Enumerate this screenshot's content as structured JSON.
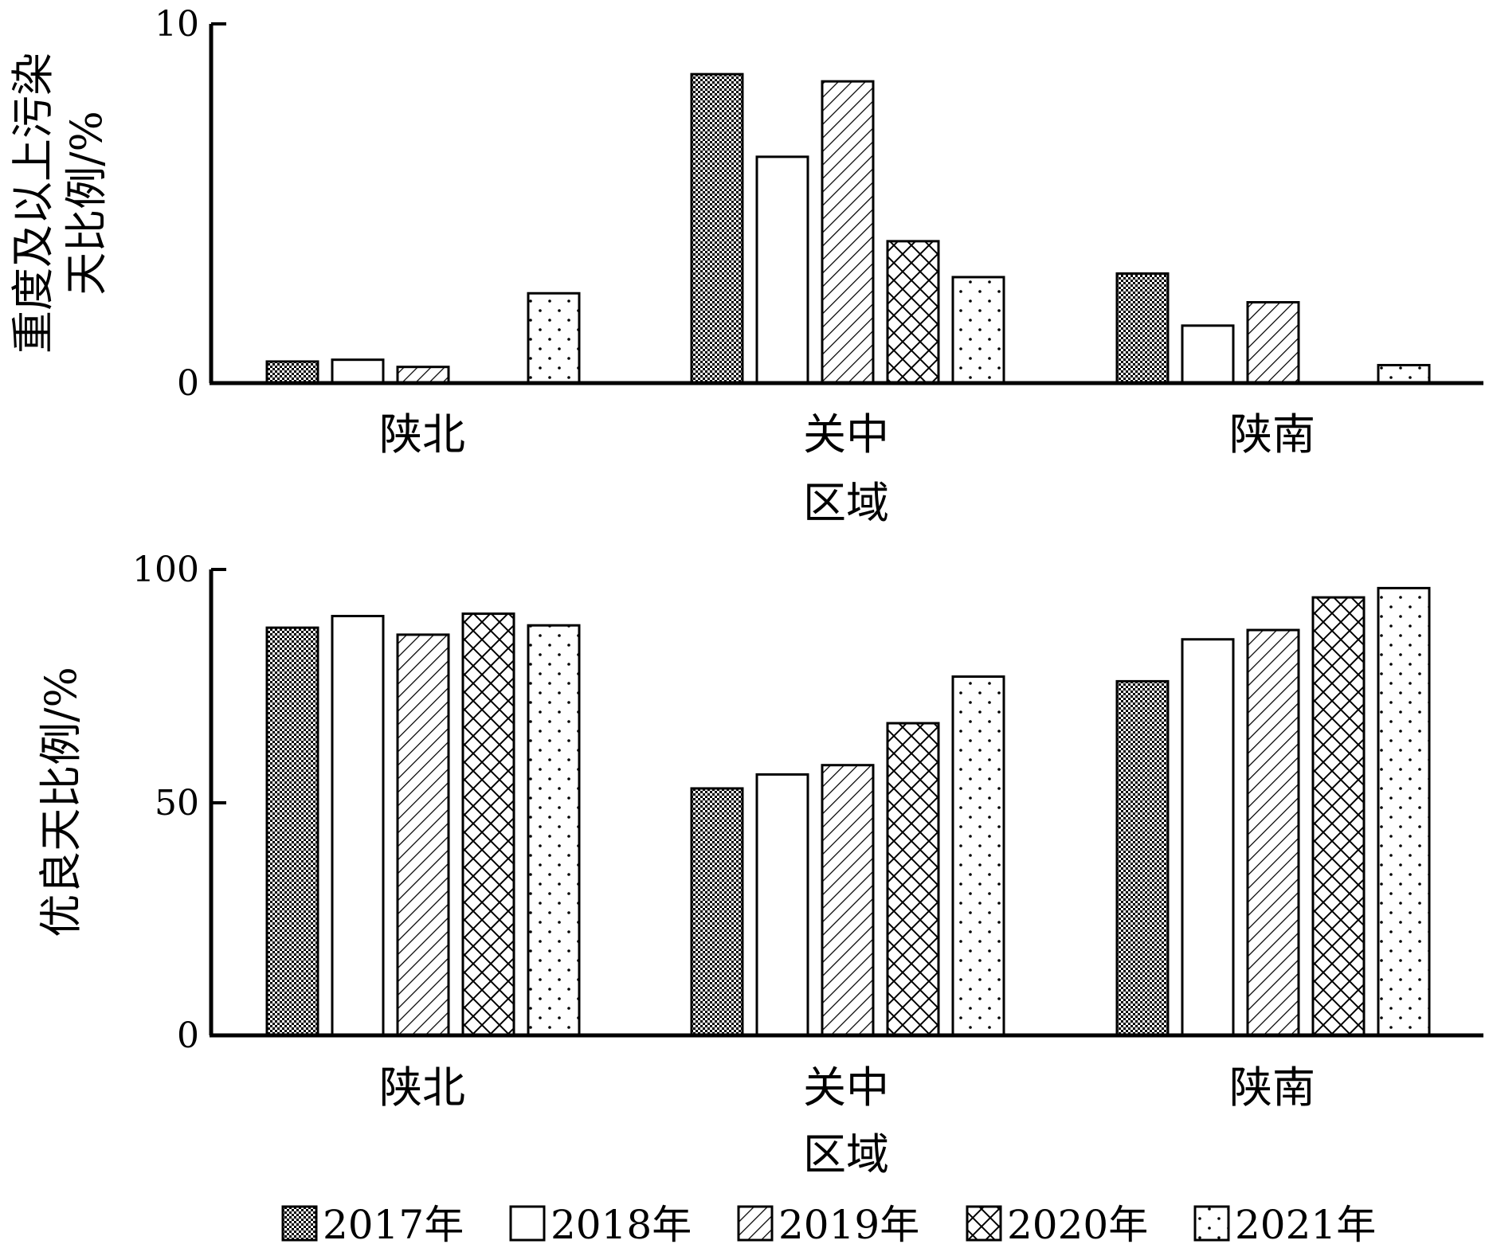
{
  "chart_data": [
    {
      "type": "bar",
      "ylabel_line1": "重度及以上污染",
      "ylabel_line2": "天比例/%",
      "xlabel": "区域",
      "categories": [
        "陕北",
        "关中",
        "陕南"
      ],
      "ylim": [
        0,
        10
      ],
      "yticks": [
        0,
        10
      ],
      "series": [
        {
          "name": "2017年",
          "values": [
            0.6,
            8.6,
            3.05
          ]
        },
        {
          "name": "2018年",
          "values": [
            0.65,
            6.3,
            1.6
          ]
        },
        {
          "name": "2019年",
          "values": [
            0.45,
            8.4,
            2.25
          ]
        },
        {
          "name": "2020年",
          "values": [
            0,
            3.95,
            0
          ]
        },
        {
          "name": "2021年",
          "values": [
            2.5,
            2.95,
            0.5
          ]
        }
      ]
    },
    {
      "type": "bar",
      "ylabel": "优良天比例/%",
      "xlabel": "区域",
      "categories": [
        "陕北",
        "关中",
        "陕南"
      ],
      "ylim": [
        0,
        100
      ],
      "yticks": [
        0,
        50,
        100
      ],
      "series": [
        {
          "name": "2017年",
          "values": [
            87.5,
            53,
            76
          ]
        },
        {
          "name": "2018年",
          "values": [
            90,
            56,
            85
          ]
        },
        {
          "name": "2019年",
          "values": [
            86,
            58,
            87
          ]
        },
        {
          "name": "2020年",
          "values": [
            90.5,
            67,
            94
          ]
        },
        {
          "name": "2021年",
          "values": [
            88,
            77,
            96
          ]
        }
      ]
    }
  ],
  "legend": [
    "2017年",
    "2018年",
    "2019年",
    "2020年",
    "2021年"
  ]
}
